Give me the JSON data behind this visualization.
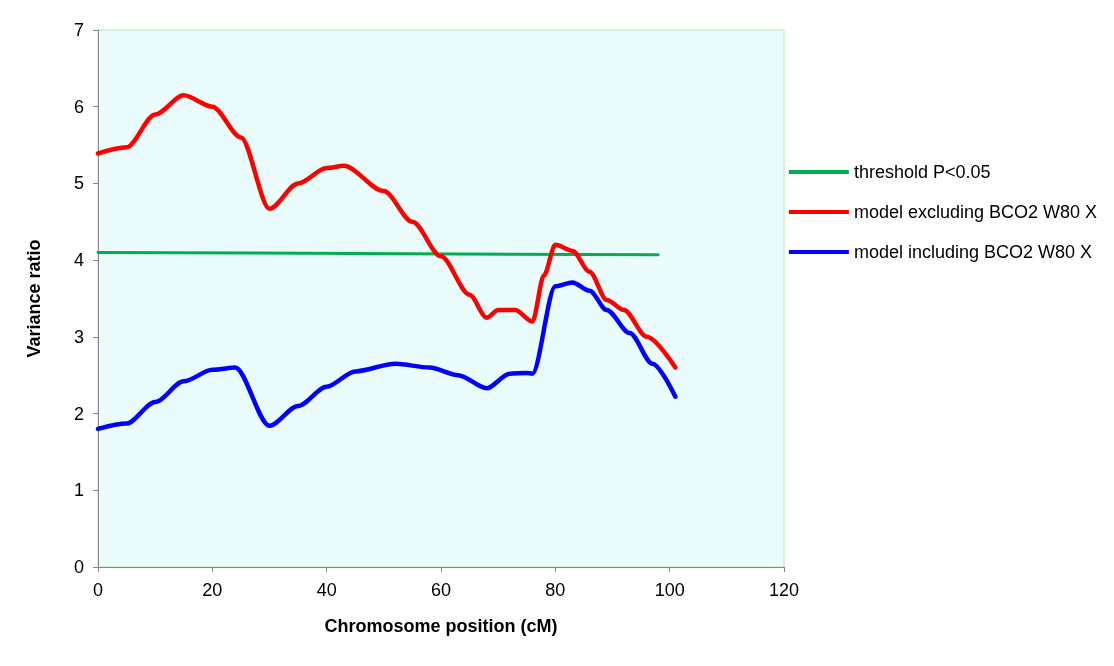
{
  "chart_data": {
    "type": "line",
    "xlabel": "Chromosome position (cM)",
    "ylabel": "Variance ratio",
    "xlim": [
      0,
      120
    ],
    "xticks": [
      0,
      20,
      40,
      60,
      80,
      100,
      120
    ],
    "ylim": [
      0,
      7
    ],
    "yticks": [
      0,
      1,
      2,
      3,
      4,
      5,
      6,
      7
    ],
    "grid": false,
    "legend": "right",
    "marker": "none",
    "series": [
      {
        "name": "threshold P<0.05",
        "color": "#00b050",
        "x": [
          0,
          98
        ],
        "values": [
          4.1,
          4.07
        ]
      },
      {
        "name": "model excluding BCO2 W80 X",
        "color": "#ff0000",
        "x": [
          0,
          5,
          10,
          15,
          20,
          25,
          30,
          35,
          40,
          43,
          50,
          55,
          60,
          65,
          68,
          70,
          73,
          76,
          78,
          80,
          83,
          86,
          89,
          92,
          96,
          101
        ],
        "values": [
          5.39,
          5.47,
          5.9,
          6.15,
          6.0,
          5.6,
          4.67,
          5.0,
          5.2,
          5.23,
          4.9,
          4.5,
          4.05,
          3.55,
          3.25,
          3.35,
          3.35,
          3.2,
          3.8,
          4.2,
          4.12,
          3.85,
          3.48,
          3.35,
          3.0,
          2.6
        ]
      },
      {
        "name": "model including BCO2 W80 X",
        "color": "#0000ff",
        "x": [
          0,
          5,
          10,
          15,
          20,
          24,
          30,
          35,
          40,
          45,
          52,
          58,
          63,
          68,
          72,
          75,
          76,
          80,
          83,
          86,
          89,
          93,
          97,
          101
        ],
        "values": [
          1.8,
          1.87,
          2.15,
          2.42,
          2.57,
          2.6,
          1.84,
          2.1,
          2.35,
          2.55,
          2.65,
          2.6,
          2.5,
          2.33,
          2.52,
          2.53,
          2.52,
          3.66,
          3.71,
          3.6,
          3.35,
          3.05,
          2.65,
          2.22
        ]
      }
    ]
  }
}
